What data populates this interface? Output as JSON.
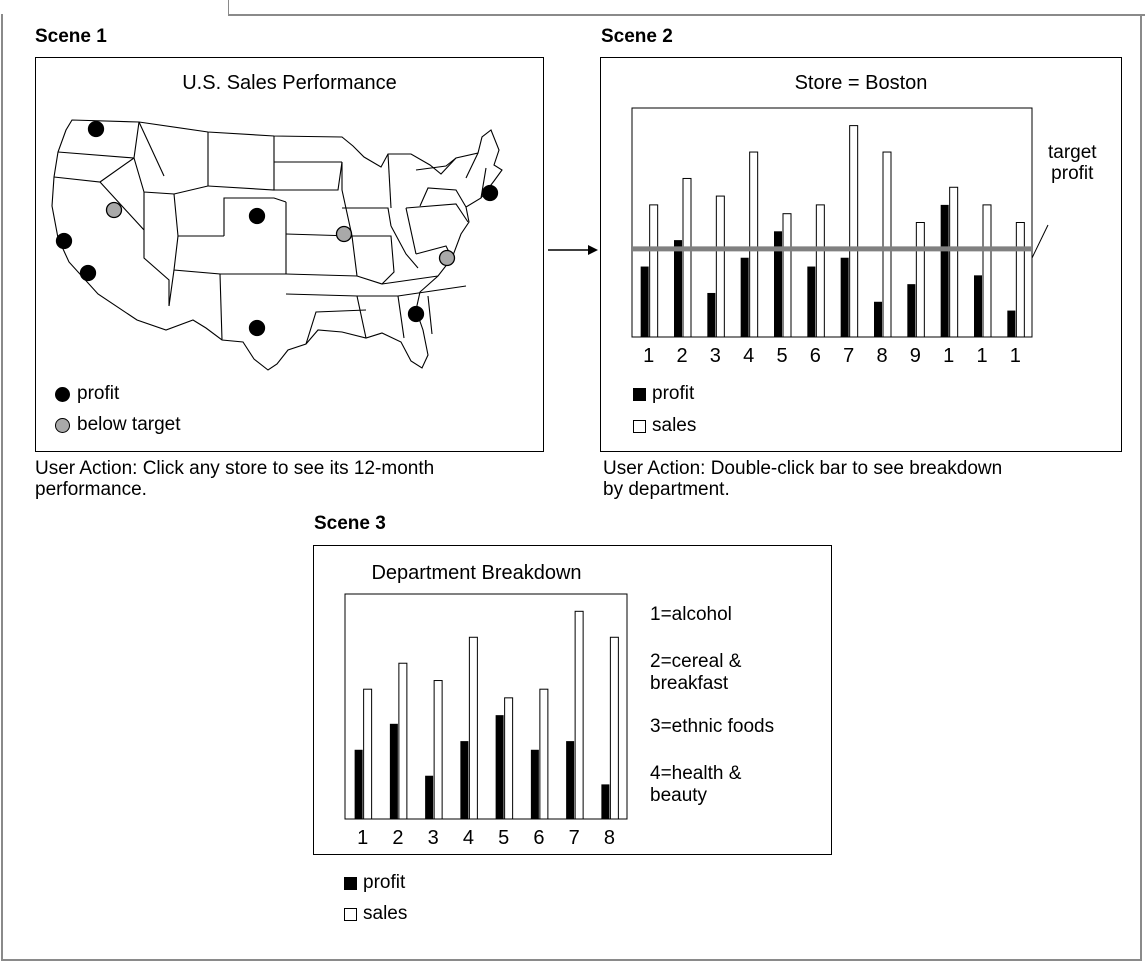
{
  "scene1": {
    "heading": "Scene 1",
    "map_title": "U.S. Sales Performance",
    "legend": {
      "profit": "profit",
      "below_target": "below target"
    },
    "caption_line1": "User Action: Click any store to see its 12-month",
    "caption_line2": "performance.",
    "colors": {
      "profit": "#000000",
      "below_target": "#a9a9a9"
    }
  },
  "scene2": {
    "heading": "Scene 2",
    "chart_title": "Store = Boston",
    "target_label_line1": "target",
    "target_label_line2": "profit",
    "legend": {
      "profit": "profit",
      "sales": "sales"
    },
    "caption_line1": "User Action: Double-click bar to see breakdown",
    "caption_line2": "by department."
  },
  "scene3": {
    "heading": "Scene 3",
    "chart_title": "Department Breakdown",
    "legend": {
      "profit": "profit",
      "sales": "sales"
    },
    "dept_key": [
      {
        "line1": "1=alcohol",
        "line2": ""
      },
      {
        "line1": "2=cereal &",
        "line2": "breakfast"
      },
      {
        "line1": "3=ethnic foods",
        "line2": ""
      },
      {
        "line1": "4=health &",
        "line2": "beauty"
      }
    ]
  },
  "chart_data": [
    {
      "type": "bar",
      "title": "Store = Boston",
      "categories": [
        "1",
        "2",
        "3",
        "4",
        "5",
        "6",
        "7",
        "8",
        "9",
        "1",
        "1",
        "1"
      ],
      "series": [
        {
          "name": "profit",
          "values": [
            40,
            55,
            25,
            45,
            60,
            40,
            45,
            20,
            30,
            75,
            35,
            15
          ]
        },
        {
          "name": "sales",
          "values": [
            75,
            90,
            80,
            105,
            70,
            75,
            120,
            105,
            65,
            85,
            75,
            65
          ]
        }
      ],
      "target": 50,
      "ylim": [
        0,
        130
      ]
    },
    {
      "type": "bar",
      "title": "Department Breakdown",
      "categories": [
        "1",
        "2",
        "3",
        "4",
        "5",
        "6",
        "7",
        "8"
      ],
      "series": [
        {
          "name": "profit",
          "values": [
            40,
            55,
            25,
            45,
            60,
            40,
            45,
            20
          ]
        },
        {
          "name": "sales",
          "values": [
            75,
            90,
            80,
            105,
            70,
            75,
            120,
            105
          ]
        }
      ],
      "ylim": [
        0,
        130
      ]
    }
  ]
}
